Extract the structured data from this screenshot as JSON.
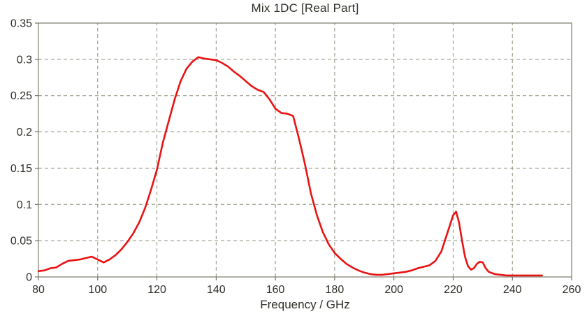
{
  "colors": {
    "background": "#ffffff",
    "grid": "#8e8e7c",
    "frame": "#7a7a6a",
    "text": "#2e2e28",
    "series": "#e81313"
  },
  "chart_data": {
    "type": "line",
    "title": "Mix 1DC [Real Part]",
    "xlabel": "Frequency / GHz",
    "ylabel": "",
    "xlim": [
      80,
      260
    ],
    "ylim": [
      0,
      0.35
    ],
    "xticks": [
      80,
      100,
      120,
      140,
      160,
      180,
      200,
      220,
      240,
      260
    ],
    "xticklabels": [
      "80",
      "100",
      "120",
      "140",
      "160",
      "180",
      "200",
      "220",
      "240",
      "260"
    ],
    "yticks": [
      0,
      0.05,
      0.1,
      0.15,
      0.2,
      0.25,
      0.3,
      0.35
    ],
    "yticklabels": [
      "0",
      "0.05",
      "0.1",
      "0.15",
      "0.2",
      "0.25",
      "0.3",
      "0.35"
    ],
    "grid": "dashed",
    "legend": "none",
    "series": [
      {
        "name": "Mix 1DC [Real Part]",
        "color": "#e81313",
        "x": [
          80,
          82,
          84,
          86,
          88,
          90,
          92,
          94,
          96,
          98,
          100,
          102,
          104,
          106,
          108,
          110,
          112,
          114,
          116,
          118,
          120,
          122,
          124,
          126,
          128,
          130,
          132,
          134,
          136,
          138,
          140,
          142,
          144,
          146,
          148,
          150,
          152,
          154,
          156,
          158,
          160,
          162,
          164,
          166,
          168,
          170,
          172,
          174,
          176,
          178,
          180,
          182,
          184,
          186,
          188,
          190,
          192,
          194,
          196,
          198,
          200,
          202,
          204,
          206,
          208,
          210,
          212,
          214,
          216,
          218,
          220,
          221,
          222,
          223,
          224,
          225,
          226,
          227,
          228,
          229,
          230,
          231,
          232,
          234,
          236,
          238,
          240,
          242,
          244,
          246,
          248,
          250
        ],
        "y": [
          0.008,
          0.009,
          0.012,
          0.013,
          0.018,
          0.022,
          0.023,
          0.024,
          0.026,
          0.028,
          0.024,
          0.02,
          0.024,
          0.03,
          0.038,
          0.048,
          0.06,
          0.075,
          0.095,
          0.12,
          0.148,
          0.185,
          0.215,
          0.245,
          0.27,
          0.287,
          0.297,
          0.303,
          0.301,
          0.3,
          0.299,
          0.295,
          0.29,
          0.283,
          0.277,
          0.27,
          0.263,
          0.258,
          0.255,
          0.245,
          0.232,
          0.226,
          0.225,
          0.222,
          0.19,
          0.155,
          0.115,
          0.085,
          0.062,
          0.045,
          0.033,
          0.025,
          0.018,
          0.013,
          0.009,
          0.006,
          0.004,
          0.003,
          0.003,
          0.004,
          0.005,
          0.006,
          0.007,
          0.009,
          0.012,
          0.014,
          0.016,
          0.022,
          0.035,
          0.06,
          0.085,
          0.09,
          0.075,
          0.05,
          0.028,
          0.015,
          0.01,
          0.012,
          0.018,
          0.021,
          0.02,
          0.012,
          0.007,
          0.004,
          0.003,
          0.002,
          0.002,
          0.002,
          0.002,
          0.002,
          0.002,
          0.002
        ]
      }
    ]
  }
}
